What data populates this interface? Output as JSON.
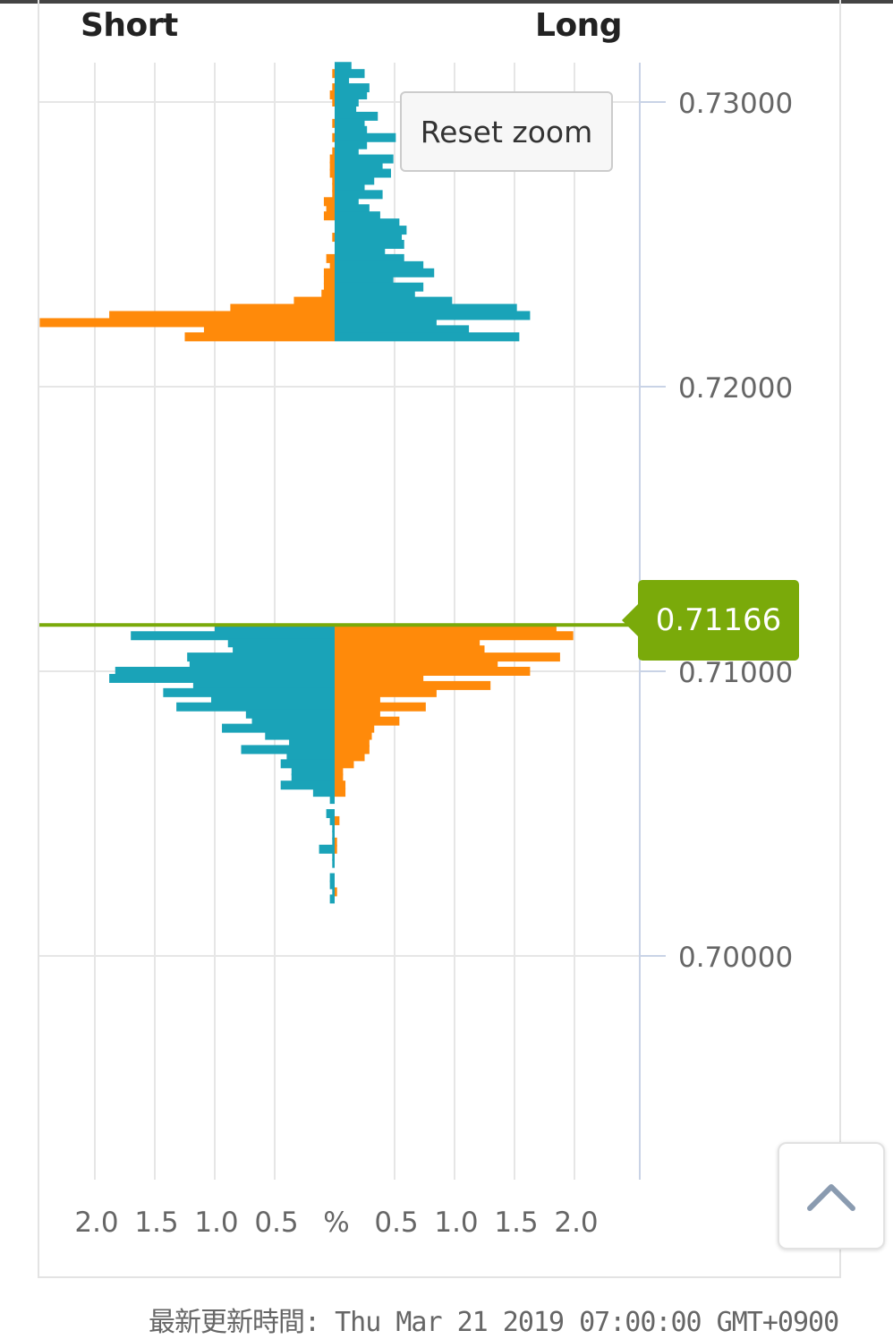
{
  "header": {
    "short_label": "Short",
    "long_label": "Long"
  },
  "reset_zoom_label": "Reset zoom",
  "current_price_label": "0.71166",
  "footer_text": "最新更新時間: Thu Mar 21 2019 07:00:00 GMT+0900",
  "colors": {
    "series_blue": "#1aa3b8",
    "series_orange": "#ff8a0a",
    "price_line": "#7aaa0a",
    "grid": "#e6e6e6",
    "axis_line": "#c9d3e6"
  },
  "icons": {
    "scroll_top": "chevron-up-icon"
  },
  "chart_data": {
    "type": "bar",
    "orientation": "horizontal-butterfly",
    "title": "",
    "xlabel": "%",
    "ylabel": "",
    "x_ticks_left": [
      "2.0",
      "1.5",
      "1.0",
      "0.5"
    ],
    "x_center_label": "%",
    "x_ticks_right": [
      "0.5",
      "1.0",
      "1.5",
      "2.0"
    ],
    "xlim": [
      -2.5,
      2.5
    ],
    "y_ticks": [
      "0.73000",
      "0.72000",
      "0.71000",
      "0.70000"
    ],
    "y_step": 0.0005,
    "current_price": 0.71166,
    "rows": [
      [
        0.73125,
        0,
        0.0,
        0.14
      ],
      [
        0.731,
        0.02,
        0.0,
        0.25
      ],
      [
        0.73075,
        0,
        0.0,
        0.12
      ],
      [
        0.7305,
        0.02,
        0.0,
        0.29
      ],
      [
        0.73025,
        0.04,
        0.0,
        0.27
      ],
      [
        0.73,
        0.02,
        0.0,
        0.2
      ],
      [
        0.72975,
        0,
        0.0,
        0.18
      ],
      [
        0.7295,
        0,
        0.0,
        0.36
      ],
      [
        0.72925,
        0.02,
        0.0,
        0.25
      ],
      [
        0.729,
        0,
        0.0,
        0.27
      ],
      [
        0.72875,
        0.02,
        0.0,
        0.51
      ],
      [
        0.7285,
        0,
        0.0,
        0.27
      ],
      [
        0.72825,
        0.02,
        0.0,
        0.2
      ],
      [
        0.728,
        0.04,
        0.0,
        0.49
      ],
      [
        0.72775,
        0.04,
        0.0,
        0.4
      ],
      [
        0.7275,
        0.04,
        0.0,
        0.47
      ],
      [
        0.72725,
        0.02,
        0.0,
        0.33
      ],
      [
        0.727,
        0.02,
        0.0,
        0.25
      ],
      [
        0.72675,
        0.02,
        0.0,
        0.4
      ],
      [
        0.7265,
        0.09,
        0.0,
        0.2
      ],
      [
        0.72625,
        0.07,
        0.0,
        0.29
      ],
      [
        0.726,
        0.09,
        0.0,
        0.38
      ],
      [
        0.72575,
        0,
        0.0,
        0.54
      ],
      [
        0.7255,
        0,
        0.0,
        0.6
      ],
      [
        0.72525,
        0.02,
        0.0,
        0.56
      ],
      [
        0.725,
        0,
        0.0,
        0.58
      ],
      [
        0.72475,
        0,
        0.0,
        0.42
      ],
      [
        0.7245,
        0.07,
        0.0,
        0.58
      ],
      [
        0.72425,
        0.04,
        0.0,
        0.74
      ],
      [
        0.724,
        0.09,
        0.0,
        0.83
      ],
      [
        0.72375,
        0.09,
        0.0,
        0.49
      ],
      [
        0.7235,
        0.09,
        0.0,
        0.74
      ],
      [
        0.72325,
        0.11,
        0.0,
        0.67
      ],
      [
        0.723,
        0.34,
        0.0,
        0.98
      ],
      [
        0.72275,
        0.87,
        0.0,
        1.52
      ],
      [
        0.7225,
        1.88,
        0.0,
        1.63
      ],
      [
        0.72225,
        2.46,
        0.0,
        0.85
      ],
      [
        0.722,
        1.09,
        0.0,
        1.12
      ],
      [
        0.72175,
        1.25,
        0.0,
        1.54
      ],
      [
        0.7115,
        0,
        1.0,
        1.85
      ],
      [
        0.71125,
        0,
        1.7,
        1.99
      ],
      [
        0.711,
        0,
        0.89,
        1.21
      ],
      [
        0.71075,
        0,
        0.85,
        1.25
      ],
      [
        0.7105,
        0,
        1.23,
        1.88
      ],
      [
        0.71025,
        0,
        1.21,
        1.36
      ],
      [
        0.71,
        0,
        1.83,
        1.63
      ],
      [
        0.70975,
        0,
        1.88,
        0.74
      ],
      [
        0.7095,
        0,
        1.18,
        1.3
      ],
      [
        0.70925,
        0,
        1.43,
        0.85
      ],
      [
        0.709,
        0,
        1.03,
        0.38
      ],
      [
        0.70875,
        0,
        1.32,
        0.76
      ],
      [
        0.7085,
        0,
        0.74,
        0.38
      ],
      [
        0.70825,
        0,
        0.69,
        0.54
      ],
      [
        0.708,
        0,
        0.94,
        0.33
      ],
      [
        0.70775,
        0,
        0.58,
        0.31
      ],
      [
        0.7075,
        0,
        0.38,
        0.29
      ],
      [
        0.70725,
        0,
        0.78,
        0.29
      ],
      [
        0.707,
        0,
        0.4,
        0.25
      ],
      [
        0.70675,
        0,
        0.45,
        0.16
      ],
      [
        0.7065,
        0,
        0.36,
        0.07
      ],
      [
        0.70625,
        0,
        0.36,
        0.07
      ],
      [
        0.706,
        0,
        0.45,
        0.09
      ],
      [
        0.70575,
        0,
        0.18,
        0.09
      ],
      [
        0.7055,
        0,
        0.04,
        0
      ],
      [
        0.705,
        0,
        0.07,
        0
      ],
      [
        0.70475,
        0,
        0.04,
        0.04
      ],
      [
        0.7045,
        0,
        0.02,
        0
      ],
      [
        0.70425,
        0,
        0.02,
        0
      ],
      [
        0.704,
        0,
        0.02,
        0.02
      ],
      [
        0.70375,
        0,
        0.13,
        0.02
      ],
      [
        0.7035,
        0,
        0.02,
        0
      ],
      [
        0.70325,
        0,
        0.02,
        0
      ],
      [
        0.70275,
        0,
        0.04,
        0
      ],
      [
        0.7025,
        0,
        0.04,
        0
      ],
      [
        0.70225,
        0,
        0.02,
        0.02
      ],
      [
        0.702,
        0,
        0.04,
        0
      ]
    ],
    "row_format": [
      "price",
      "orange_short",
      "blue_short",
      "right_long"
    ],
    "series": [
      {
        "name": "",
        "color": "#1aa3b8"
      },
      {
        "name": "",
        "color": "#ff8a0a"
      }
    ],
    "grid": true,
    "legend": "none"
  }
}
